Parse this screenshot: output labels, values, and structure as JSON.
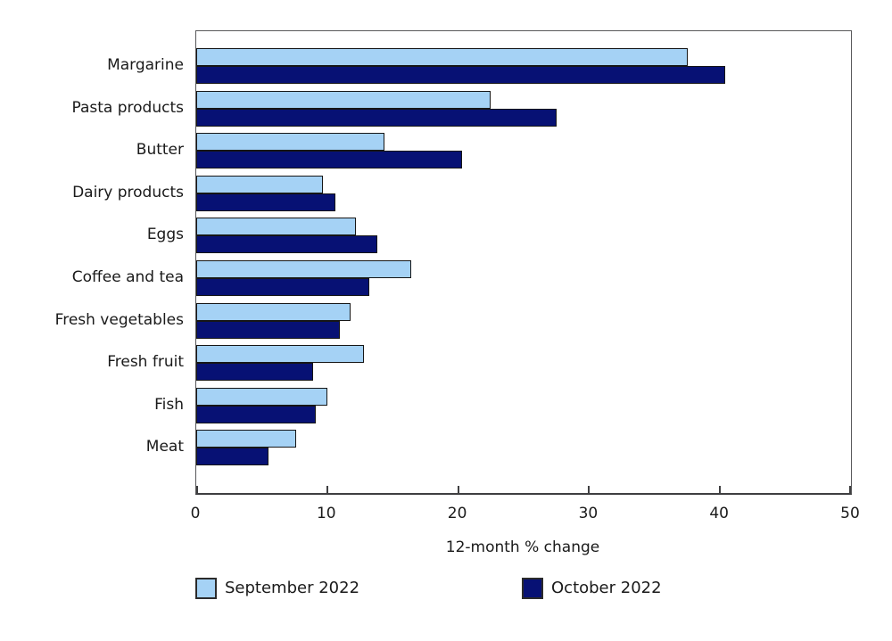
{
  "chart_data": {
    "type": "bar",
    "orientation": "horizontal",
    "title": "",
    "categories": [
      "Margarine",
      "Pasta products",
      "Butter",
      "Dairy products",
      "Eggs",
      "Coffee and tea",
      "Fresh vegetables",
      "Fresh fruit",
      "Fish",
      "Meat"
    ],
    "series": [
      {
        "name": "September 2022",
        "color": "#a5d2f5",
        "values": [
          37.5,
          22.5,
          14.4,
          9.7,
          12.2,
          16.4,
          11.8,
          12.8,
          10.0,
          7.6
        ]
      },
      {
        "name": "October 2022",
        "color": "#071174",
        "values": [
          40.4,
          27.5,
          20.3,
          10.6,
          13.8,
          13.2,
          11.0,
          8.9,
          9.1,
          5.5
        ]
      }
    ],
    "xlabel": "12-month % change",
    "xlim": [
      0,
      50
    ],
    "xticks": [
      "0",
      "10",
      "20",
      "30",
      "40",
      "50"
    ],
    "grid": false,
    "legend_position": "bottom-left"
  }
}
